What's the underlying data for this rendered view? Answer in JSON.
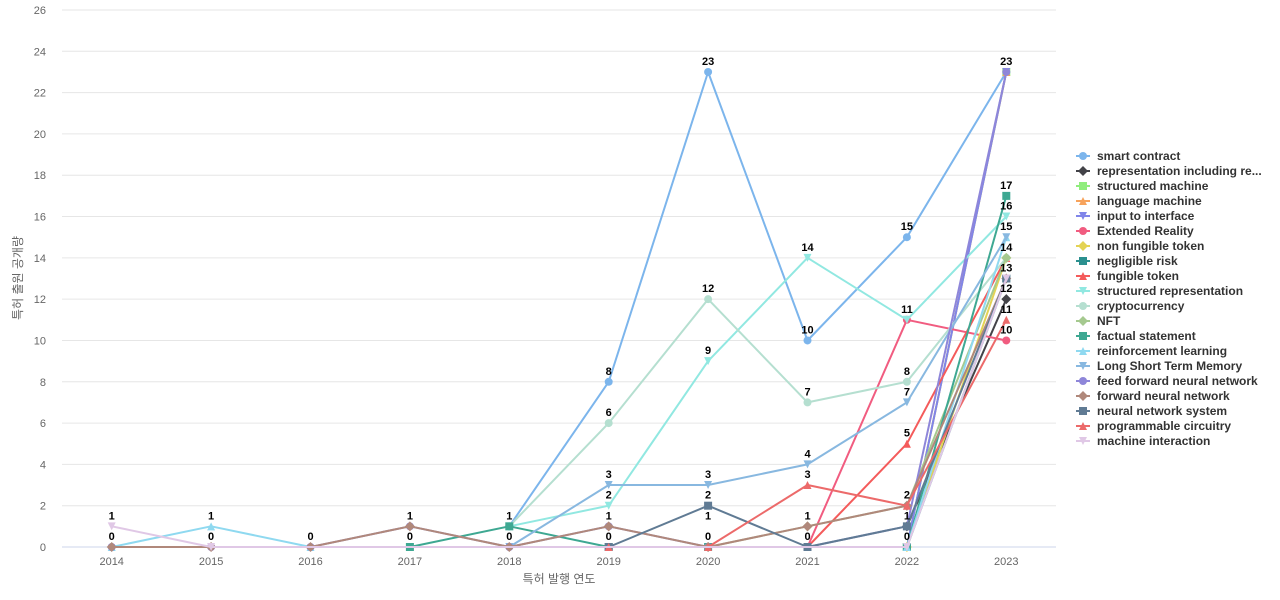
{
  "chart_data": {
    "type": "line",
    "xlabel": "특허 발행 연도",
    "ylabel": "특허 출원 공개량",
    "categories": [
      "2014",
      "2015",
      "2016",
      "2017",
      "2018",
      "2019",
      "2020",
      "2021",
      "2022",
      "2023"
    ],
    "ylim": [
      0,
      26
    ],
    "yticks": [
      0,
      2,
      4,
      6,
      8,
      10,
      12,
      14,
      16,
      18,
      20,
      22,
      24,
      26
    ],
    "legend_position": "right",
    "series": [
      {
        "name": "smart contract",
        "color": "#7cb5ec",
        "marker": "circle",
        "values": [
          null,
          null,
          null,
          null,
          1,
          8,
          23,
          10,
          15,
          23
        ]
      },
      {
        "name": "representation including re...",
        "color": "#434348",
        "marker": "diamond",
        "values": [
          null,
          null,
          null,
          null,
          null,
          null,
          null,
          null,
          1,
          12
        ]
      },
      {
        "name": "structured machine",
        "color": "#90ed7d",
        "marker": "square",
        "values": [
          null,
          null,
          null,
          null,
          null,
          null,
          null,
          null,
          0,
          23
        ]
      },
      {
        "name": "language machine",
        "color": "#f7a35c",
        "marker": "triangle",
        "values": [
          null,
          null,
          null,
          null,
          null,
          null,
          null,
          null,
          0,
          23
        ]
      },
      {
        "name": "input to interface",
        "color": "#8085e9",
        "marker": "triangle-down",
        "values": [
          null,
          null,
          null,
          null,
          null,
          null,
          null,
          null,
          0,
          23
        ]
      },
      {
        "name": "Extended Reality",
        "color": "#f15c80",
        "marker": "circle",
        "values": [
          null,
          null,
          null,
          null,
          null,
          null,
          null,
          0,
          11,
          10
        ]
      },
      {
        "name": "non fungible token",
        "color": "#e4d354",
        "marker": "diamond",
        "values": [
          null,
          null,
          null,
          null,
          null,
          null,
          null,
          null,
          0,
          14
        ]
      },
      {
        "name": "negligible risk",
        "color": "#2b908f",
        "marker": "square",
        "values": [
          null,
          null,
          null,
          null,
          null,
          null,
          null,
          null,
          0,
          13
        ]
      },
      {
        "name": "fungible token",
        "color": "#f45b5b",
        "marker": "triangle",
        "values": [
          null,
          null,
          null,
          null,
          null,
          null,
          null,
          0,
          5,
          14
        ]
      },
      {
        "name": "structured representation",
        "color": "#91e8e1",
        "marker": "triangle-down",
        "values": [
          null,
          null,
          null,
          null,
          1,
          2,
          9,
          14,
          11,
          16
        ]
      },
      {
        "name": "cryptocurrency",
        "color": "#b5dfd0",
        "marker": "circle",
        "values": [
          null,
          null,
          null,
          null,
          1,
          6,
          12,
          7,
          8,
          14
        ]
      },
      {
        "name": "NFT",
        "color": "#a5c98f",
        "marker": "diamond",
        "values": [
          null,
          null,
          null,
          null,
          null,
          null,
          0,
          1,
          2,
          14
        ]
      },
      {
        "name": "factual statement",
        "color": "#3ea892",
        "marker": "square",
        "values": [
          null,
          null,
          null,
          0,
          1,
          0,
          0,
          0,
          0,
          17
        ]
      },
      {
        "name": "reinforcement learning",
        "color": "#8fd9f0",
        "marker": "triangle",
        "values": [
          0,
          1,
          0,
          null,
          null,
          null,
          null,
          null,
          0,
          15
        ]
      },
      {
        "name": "Long Short Term Memory",
        "color": "#88b8e0",
        "marker": "triangle-down",
        "values": [
          null,
          null,
          null,
          null,
          0,
          3,
          3,
          4,
          7,
          15
        ]
      },
      {
        "name": "feed forward neural network",
        "color": "#8e86d9",
        "marker": "circle",
        "values": [
          0,
          0,
          0,
          1,
          0,
          1,
          0,
          0,
          1,
          23
        ]
      },
      {
        "name": "forward neural network",
        "color": "#b0887b",
        "marker": "diamond",
        "values": [
          0,
          0,
          0,
          1,
          0,
          1,
          0,
          1,
          2,
          13
        ]
      },
      {
        "name": "neural network system",
        "color": "#607b94",
        "marker": "square",
        "values": [
          null,
          null,
          null,
          null,
          null,
          0,
          2,
          0,
          1,
          13
        ]
      },
      {
        "name": "programmable circuitry",
        "color": "#ec6a6a",
        "marker": "triangle",
        "values": [
          null,
          null,
          null,
          null,
          null,
          0,
          0,
          3,
          2,
          11
        ]
      },
      {
        "name": "machine interaction",
        "color": "#e0c8e6",
        "marker": "triangle-down",
        "values": [
          1,
          0,
          null,
          null,
          null,
          null,
          null,
          null,
          0,
          13
        ]
      }
    ],
    "data_labels": [
      {
        "x": "2014",
        "y": 1,
        "text": "1"
      },
      {
        "x": "2014",
        "y": 0,
        "text": "0"
      },
      {
        "x": "2015",
        "y": 1,
        "text": "1"
      },
      {
        "x": "2015",
        "y": 0,
        "text": "0"
      },
      {
        "x": "2016",
        "y": 0,
        "text": "0"
      },
      {
        "x": "2017",
        "y": 1,
        "text": "1"
      },
      {
        "x": "2017",
        "y": 0,
        "text": "0"
      },
      {
        "x": "2018",
        "y": 1,
        "text": "1"
      },
      {
        "x": "2018",
        "y": 0,
        "text": "0"
      },
      {
        "x": "2019",
        "y": 8,
        "text": "8"
      },
      {
        "x": "2019",
        "y": 6,
        "text": "6"
      },
      {
        "x": "2019",
        "y": 3,
        "text": "3"
      },
      {
        "x": "2019",
        "y": 2,
        "text": "2"
      },
      {
        "x": "2019",
        "y": 1,
        "text": "1"
      },
      {
        "x": "2019",
        "y": 0,
        "text": "0"
      },
      {
        "x": "2020",
        "y": 23,
        "text": "23"
      },
      {
        "x": "2020",
        "y": 12,
        "text": "12"
      },
      {
        "x": "2020",
        "y": 9,
        "text": "9"
      },
      {
        "x": "2020",
        "y": 3,
        "text": "3"
      },
      {
        "x": "2020",
        "y": 2,
        "text": "2"
      },
      {
        "x": "2020",
        "y": 1,
        "text": "1"
      },
      {
        "x": "2020",
        "y": 0,
        "text": "0"
      },
      {
        "x": "2021",
        "y": 14,
        "text": "14"
      },
      {
        "x": "2021",
        "y": 10,
        "text": "10"
      },
      {
        "x": "2021",
        "y": 7,
        "text": "7"
      },
      {
        "x": "2021",
        "y": 4,
        "text": "4"
      },
      {
        "x": "2021",
        "y": 3,
        "text": "3"
      },
      {
        "x": "2021",
        "y": 1,
        "text": "1"
      },
      {
        "x": "2021",
        "y": 0,
        "text": "0"
      },
      {
        "x": "2022",
        "y": 15,
        "text": "15"
      },
      {
        "x": "2022",
        "y": 11,
        "text": "11"
      },
      {
        "x": "2022",
        "y": 8,
        "text": "8"
      },
      {
        "x": "2022",
        "y": 7,
        "text": "7"
      },
      {
        "x": "2022",
        "y": 5,
        "text": "5"
      },
      {
        "x": "2022",
        "y": 2,
        "text": "2"
      },
      {
        "x": "2022",
        "y": 1,
        "text": "1"
      },
      {
        "x": "2022",
        "y": 0,
        "text": "0"
      },
      {
        "x": "2023",
        "y": 23,
        "text": "23"
      },
      {
        "x": "2023",
        "y": 17,
        "text": "17"
      },
      {
        "x": "2023",
        "y": 16,
        "text": "16"
      },
      {
        "x": "2023",
        "y": 15,
        "text": "15"
      },
      {
        "x": "2023",
        "y": 14,
        "text": "14"
      },
      {
        "x": "2023",
        "y": 13,
        "text": "13"
      },
      {
        "x": "2023",
        "y": 12,
        "text": "12"
      },
      {
        "x": "2023",
        "y": 11,
        "text": "11"
      },
      {
        "x": "2023",
        "y": 10,
        "text": "10"
      }
    ]
  }
}
